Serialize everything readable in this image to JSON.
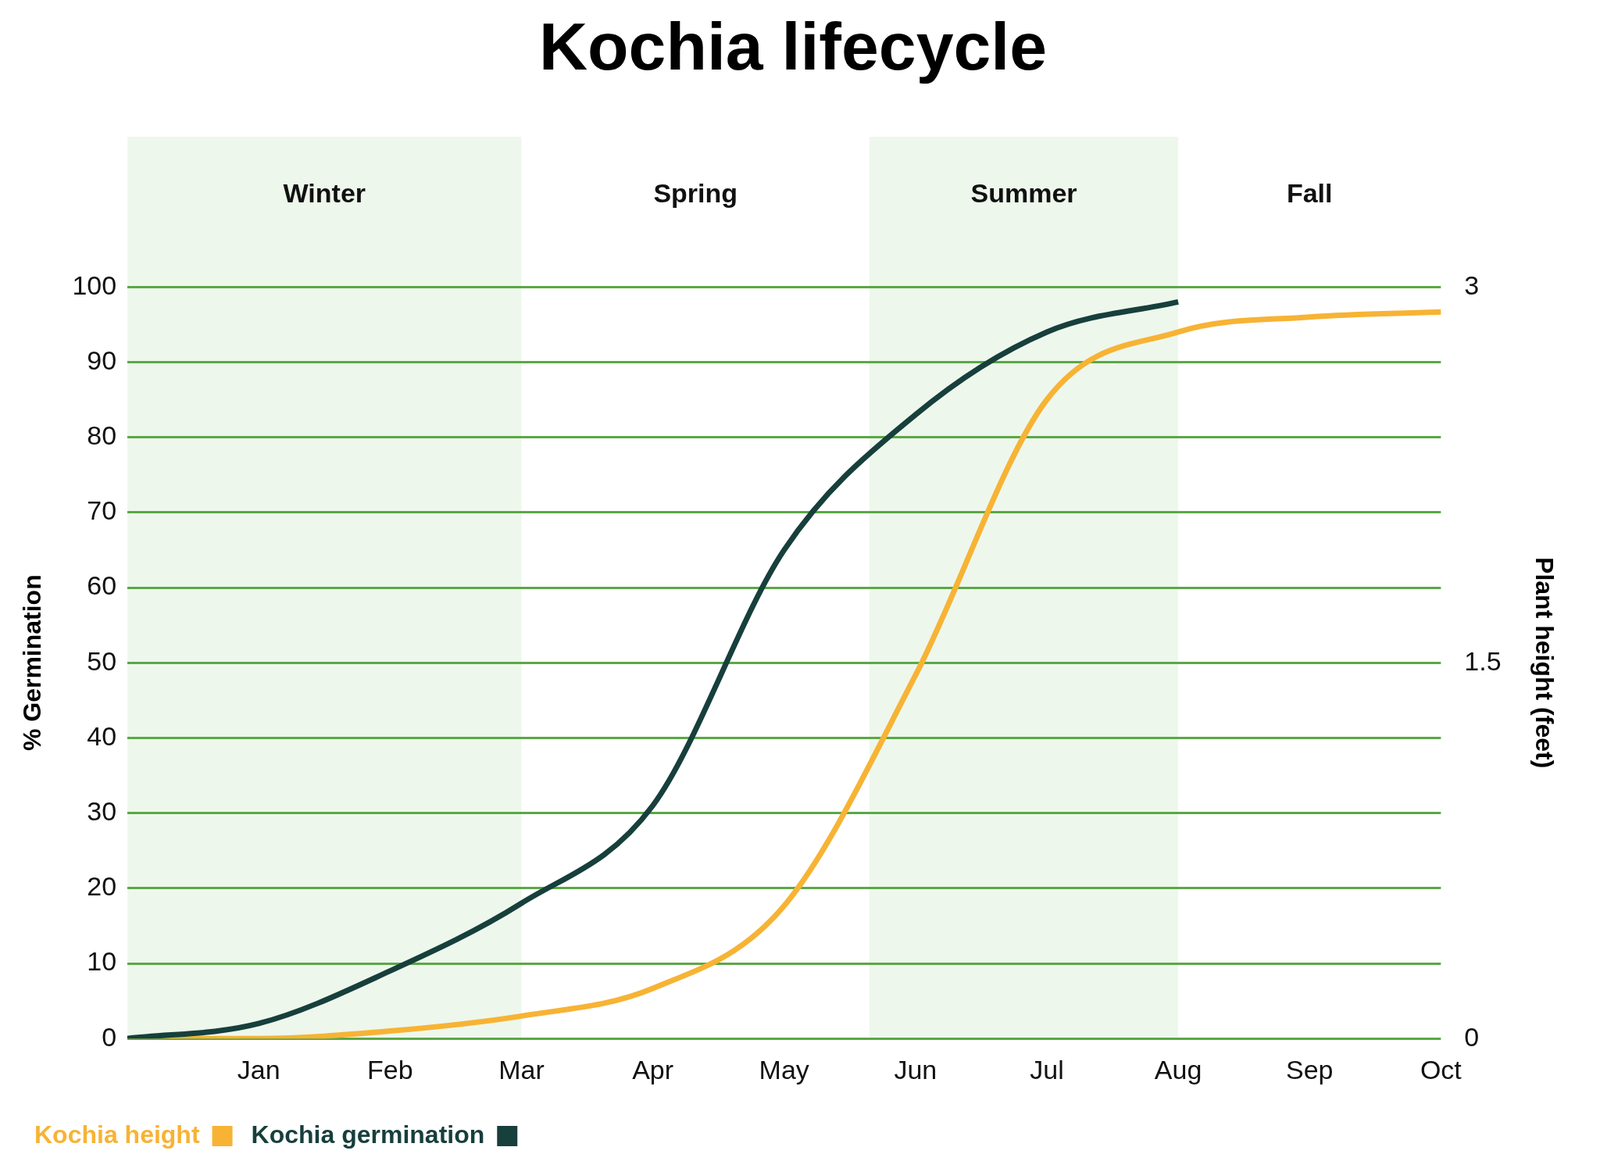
{
  "chart_data": {
    "type": "line",
    "title": "Kochia lifecycle",
    "categories": [
      null,
      "Jan",
      "Feb",
      "Mar",
      "Apr",
      "May",
      "Jun",
      "Jul",
      "Aug",
      "Sep",
      "Oct"
    ],
    "series": [
      {
        "name": "Kochia germination",
        "color": "#173f3c",
        "values": [
          0,
          2,
          9,
          18,
          31,
          65,
          83,
          94,
          98,
          null,
          null
        ]
      },
      {
        "name": "Kochia height",
        "color": "#f7b334",
        "axis": "y2",
        "values": [
          0,
          0,
          0.03,
          0.09,
          0.2,
          0.53,
          1.45,
          2.55,
          2.82,
          2.88,
          2.9
        ]
      }
    ],
    "y_label": "% Germination",
    "y2_label": "Plant height (feet)",
    "ylim": [
      0,
      100
    ],
    "yticks": [
      0,
      10,
      20,
      30,
      40,
      50,
      60,
      70,
      80,
      90,
      100
    ],
    "y2lim": [
      0,
      3
    ],
    "y2ticks": [
      0,
      1.5,
      3
    ],
    "grid": true,
    "legend": "bottom",
    "seasons": [
      {
        "label": "Winter",
        "start": 0,
        "end": 3
      },
      {
        "label": "Spring",
        "start": 3,
        "end": 5.65
      },
      {
        "label": "Summer",
        "start": 5.65,
        "end": 8
      },
      {
        "label": "Fall",
        "start": 8,
        "end": 10
      }
    ]
  }
}
